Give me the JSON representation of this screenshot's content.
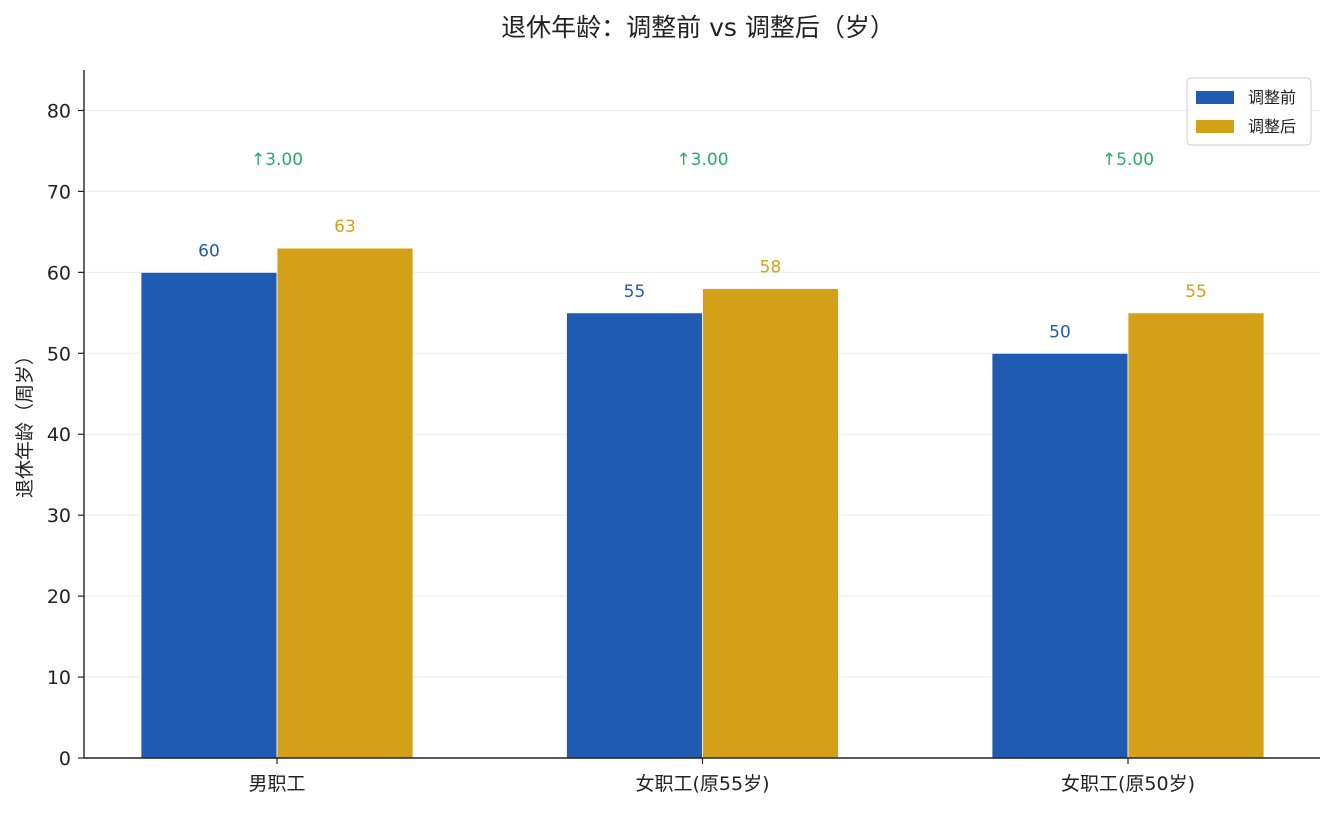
{
  "chart_data": {
    "type": "bar",
    "title": "退休年龄：调整前 vs 调整后（岁）",
    "ylabel": "退休年龄（周岁）",
    "xlabel": "",
    "categories": [
      "男职工",
      "女职工(原55岁)",
      "女职工(原50岁)"
    ],
    "series": [
      {
        "name": "调整前",
        "values": [
          60,
          55,
          50
        ],
        "color": "#1f5bb0"
      },
      {
        "name": "调整后",
        "values": [
          63,
          58,
          55
        ],
        "color": "#d4a017"
      }
    ],
    "increase_labels": [
      "↑3.00",
      "↑3.00",
      "↑5.00"
    ],
    "increase_color": "#27ae60",
    "ylim": [
      0,
      85
    ],
    "yticks": [
      0,
      10,
      20,
      30,
      40,
      50,
      60,
      70,
      80
    ],
    "legend": "top-right",
    "grid": true
  }
}
